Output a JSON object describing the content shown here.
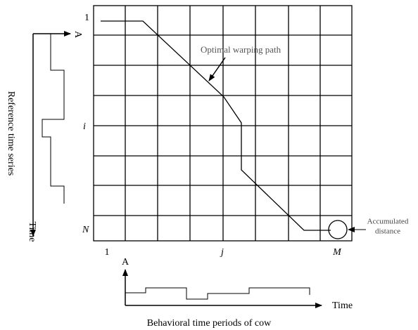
{
  "grid": {
    "row_labels": {
      "top": "1",
      "first": "A",
      "middle": "i",
      "last": "N"
    },
    "col_labels": {
      "first": "1",
      "middle": "j",
      "last": "M"
    }
  },
  "path_label": "Optimal warping path",
  "accumulated": [
    "Accumulated",
    "distance"
  ],
  "reference": {
    "title": "Reference time series",
    "axis": "Time"
  },
  "behavioral": {
    "amplitude": "A",
    "axis": "Time",
    "caption": "Behavioral time periods of cow"
  }
}
